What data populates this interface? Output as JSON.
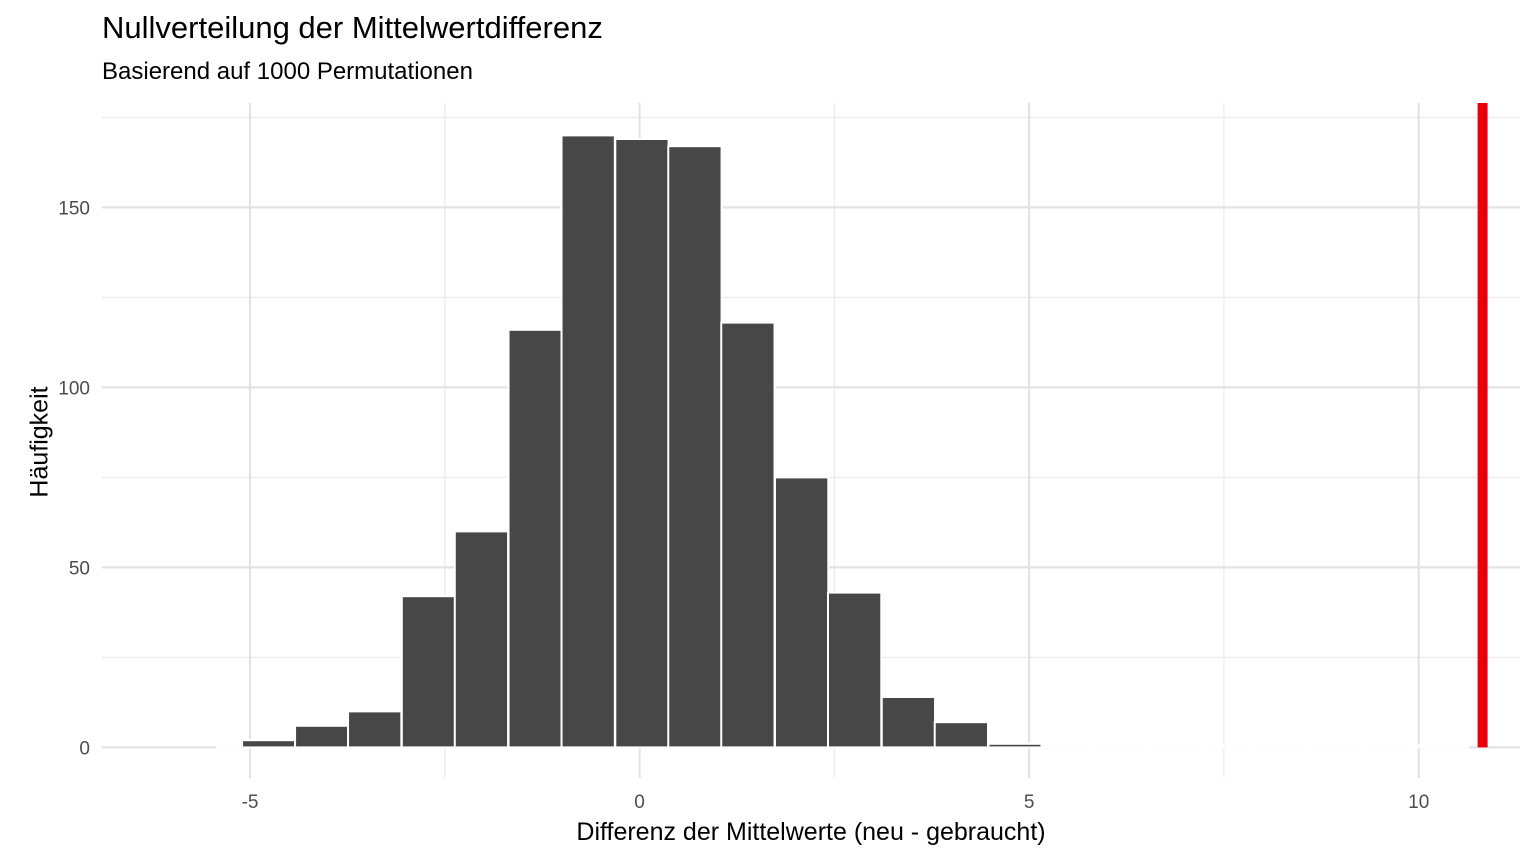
{
  "chart_data": {
    "type": "bar",
    "title": "Nullverteilung der Mittelwertdifferenz",
    "subtitle": "Basierend auf 1000 Permutationen",
    "xlabel": "Differenz der Mittelwerte (neu - gebraucht)",
    "ylabel": "Häufigkeit",
    "xlim": [
      -6.9,
      11.3
    ],
    "ylim": [
      -8.5,
      179
    ],
    "x_ticks": [
      -5,
      0,
      5,
      10
    ],
    "y_ticks": [
      0,
      50,
      100,
      150
    ],
    "grid": true,
    "bin_width": 0.684,
    "bins": [
      {
        "x": -4.76,
        "count": 2
      },
      {
        "x": -4.08,
        "count": 6
      },
      {
        "x": -3.4,
        "count": 10
      },
      {
        "x": -2.71,
        "count": 42
      },
      {
        "x": -2.03,
        "count": 60
      },
      {
        "x": -1.34,
        "count": 116
      },
      {
        "x": -0.66,
        "count": 170
      },
      {
        "x": 0.03,
        "count": 169
      },
      {
        "x": 0.71,
        "count": 167
      },
      {
        "x": 1.39,
        "count": 118
      },
      {
        "x": 2.08,
        "count": 75
      },
      {
        "x": 2.76,
        "count": 43
      },
      {
        "x": 3.45,
        "count": 14
      },
      {
        "x": 4.13,
        "count": 7
      },
      {
        "x": 4.82,
        "count": 1
      },
      {
        "x": 5.5,
        "count": 0
      },
      {
        "x": 6.18,
        "count": 0
      },
      {
        "x": 6.87,
        "count": 0
      },
      {
        "x": 7.55,
        "count": 0
      },
      {
        "x": 8.24,
        "count": 0
      },
      {
        "x": 8.92,
        "count": 0
      },
      {
        "x": 9.61,
        "count": 0
      },
      {
        "x": 10.29,
        "count": 0
      }
    ],
    "highlight_bins": [
      {
        "x": -5.08,
        "count": 0,
        "color": "#e8a0a8"
      }
    ],
    "bar_color": "#474747",
    "bar_outline": "#ffffff",
    "observed_line": {
      "x": 10.82,
      "color": "#e8000b"
    }
  }
}
